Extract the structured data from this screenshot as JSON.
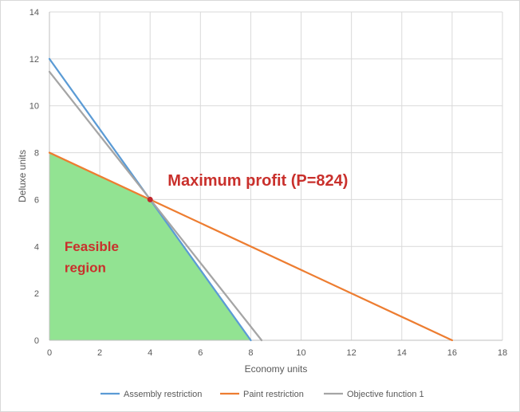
{
  "chart_data": {
    "type": "line",
    "title": "",
    "xlabel": "Economy units",
    "ylabel": "Deluxe units",
    "xlim": [
      0,
      18
    ],
    "ylim": [
      0,
      14
    ],
    "x_ticks": [
      0,
      2,
      4,
      6,
      8,
      10,
      12,
      14,
      16,
      18
    ],
    "y_ticks": [
      0,
      2,
      4,
      6,
      8,
      10,
      12,
      14
    ],
    "grid": true,
    "legend_position": "bottom",
    "series": [
      {
        "name": "Assembly restriction",
        "color": "#5b9bd5",
        "points": [
          [
            0,
            12
          ],
          [
            8,
            0
          ]
        ]
      },
      {
        "name": "Paint restriction",
        "color": "#ed7d31",
        "points": [
          [
            0,
            8
          ],
          [
            16,
            0
          ]
        ]
      },
      {
        "name": "Objective function 1",
        "color": "#a5a5a5",
        "points": [
          [
            0,
            11.45
          ],
          [
            8.43,
            0
          ]
        ]
      }
    ],
    "feasible_region": {
      "color": "#92e392",
      "vertices": [
        [
          0,
          0
        ],
        [
          0,
          8
        ],
        [
          4,
          6
        ],
        [
          8,
          0
        ]
      ]
    },
    "optimum_point": {
      "x": 4,
      "y": 6,
      "color": "#c0282d"
    },
    "annotations": {
      "max_profit": {
        "text": "Maximum profit (P=824)",
        "color": "#c9302c",
        "anchor": [
          4.7,
          6.6
        ]
      },
      "feasible_line1": {
        "text": "Feasible",
        "color": "#c9302c",
        "anchor": [
          0.6,
          3.8
        ]
      },
      "feasible_line2": {
        "text": "region",
        "color": "#c9302c",
        "anchor": [
          0.6,
          2.9
        ]
      }
    }
  }
}
